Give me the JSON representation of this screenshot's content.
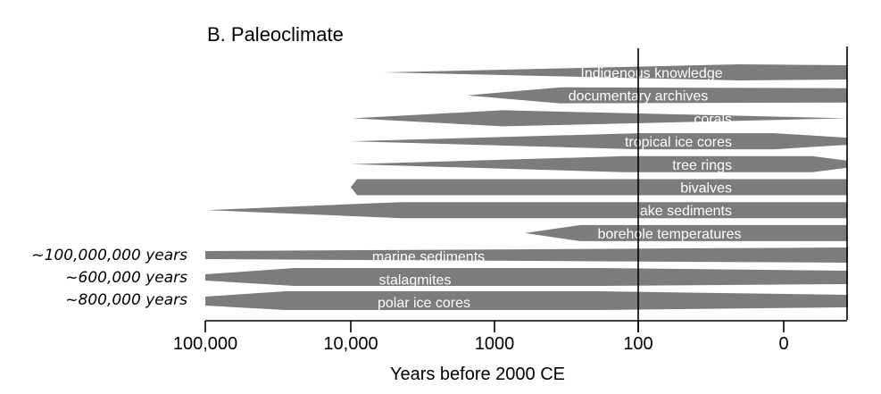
{
  "chart_data": {
    "type": "bar",
    "title": "B. Paleoclimate",
    "xlabel": "Years before 2000 CE",
    "x_scale": "log",
    "x_ticks": [
      "100,000",
      "10,000",
      "1000",
      "100",
      "0"
    ],
    "reference_lines": [
      "100"
    ],
    "grid": false,
    "legend": "none",
    "colors": {
      "bar": "#7b7c7c",
      "line": "#000000",
      "text_on_bar": "#ffffff"
    },
    "series": [
      {
        "name": "Indigenous knowledge",
        "start_years": 5000
      },
      {
        "name": "documentary archives",
        "start_years": 1500
      },
      {
        "name": "corals",
        "start_years": 10000
      },
      {
        "name": "tropical ice cores",
        "start_years": 10000
      },
      {
        "name": "tree rings",
        "start_years": 10000
      },
      {
        "name": "bivalves",
        "start_years": 10000
      },
      {
        "name": "lake sediments",
        "start_years": 100000
      },
      {
        "name": "borehole temperatures",
        "start_years": 700
      },
      {
        "name": "marine sediments",
        "start_years": 100000,
        "extends_to": "~100,000,000 years"
      },
      {
        "name": "stalagmites",
        "start_years": 100000,
        "extends_to": "~600,000 years"
      },
      {
        "name": "polar ice cores",
        "start_years": 100000,
        "extends_to": "~800,000 years"
      }
    ]
  }
}
